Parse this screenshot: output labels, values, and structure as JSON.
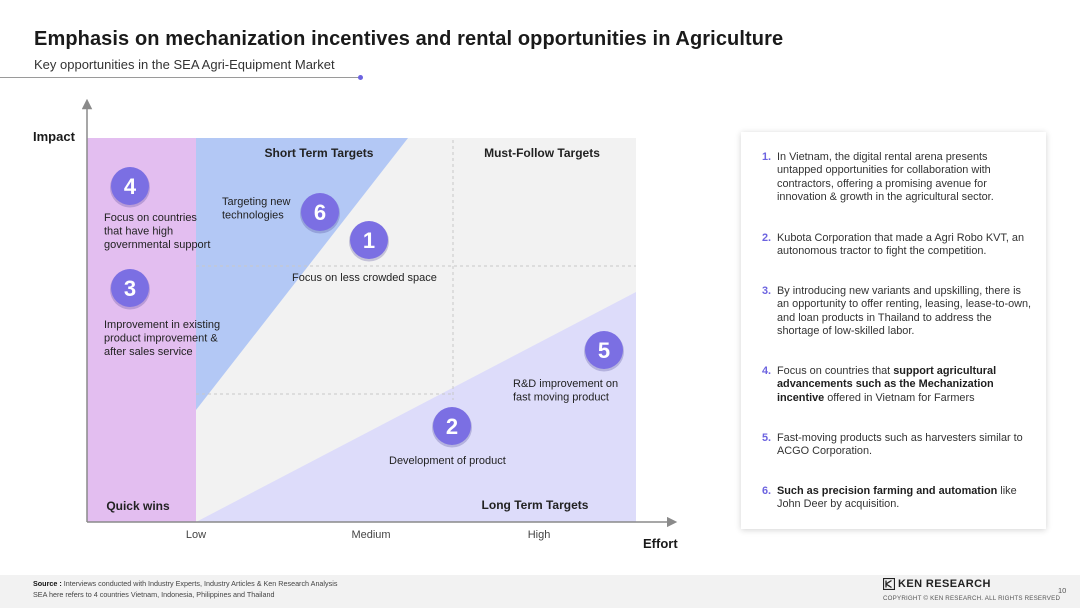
{
  "header": {
    "title": "Emphasis on mechanization incentives and rental opportunities in Agriculture",
    "subtitle": "Key opportunities in the SEA Agri-Equipment Market"
  },
  "matrix": {
    "y_axis_label": "Impact",
    "x_axis_label": "Effort",
    "x_ticks": [
      "Low",
      "Medium",
      "High"
    ],
    "quadrants": {
      "top_left": "Short Term Targets",
      "top_right": "Must-Follow Targets",
      "bottom_left": "Quick wins",
      "bottom_right": "Long Term Targets"
    },
    "opportunities": [
      {
        "number": "4",
        "label_lines": [
          "Focus on countries",
          "that have high",
          "governmental support"
        ]
      },
      {
        "number": "3",
        "label_lines": [
          "Improvement in existing",
          "product improvement &",
          "after sales service"
        ]
      },
      {
        "number": "6",
        "label_lines": [
          "Targeting new",
          "technologies"
        ]
      },
      {
        "number": "1",
        "label_lines": [
          "Focus on less crowded space"
        ]
      },
      {
        "number": "5",
        "label_lines": [
          "R&D improvement on",
          "fast moving product"
        ]
      },
      {
        "number": "2",
        "label_lines": [
          "Development of product"
        ]
      }
    ],
    "colors": {
      "quick_wins": "#e3bef0",
      "short_term": "#b3c8f5",
      "long_term": "#dddcfa",
      "background": "#f2f2f2",
      "bubble": "#7b6fe3",
      "accent": "#6c63e0",
      "axis": "#8a8a8a"
    }
  },
  "panel": {
    "items": [
      {
        "number": "1.",
        "segments": [
          {
            "text": "In Vietnam, the digital rental arena presents untapped opportunities for collaboration with contractors, offering a promising avenue for innovation & growth in the agricultural sector.",
            "bold": false
          }
        ]
      },
      {
        "number": "2.",
        "segments": [
          {
            "text": "Kubota Corporation that made a Agri Robo KVT, an autonomous tractor to fight the competition.",
            "bold": false
          }
        ]
      },
      {
        "number": "3.",
        "segments": [
          {
            "text": "By introducing new variants and upskilling, there is an opportunity to offer renting, leasing, lease-to-own, and loan products in Thailand to address the shortage of low-skilled labor.",
            "bold": false
          }
        ]
      },
      {
        "number": "4.",
        "segments": [
          {
            "text": "Focus on countries that ",
            "bold": false
          },
          {
            "text": "support agricultural advancements such as the Mechanization incentive",
            "bold": true
          },
          {
            "text": " offered in Vietnam for Farmers",
            "bold": false
          }
        ]
      },
      {
        "number": "5.",
        "segments": [
          {
            "text": "Fast-moving products such as harvesters similar to ACGO Corporation.",
            "bold": false
          }
        ]
      },
      {
        "number": "6.",
        "segments": [
          {
            "text": "Such as precision farming and automation",
            "bold": true
          },
          {
            "text": " like John Deer by acquisition.",
            "bold": false
          }
        ]
      }
    ]
  },
  "footer": {
    "source_label": "Source :",
    "source_text": " Interviews conducted with Industry Experts, Industry Articles & Ken Research Analysis",
    "note": "SEA here refers to 4 countries Vietnam, Indonesia, Philippines and Thailand",
    "brand": "KEN RESEARCH",
    "copyright": "COPYRIGHT © KEN RESEARCH. ALL RIGHTS RESERVED",
    "page_number": "10"
  }
}
